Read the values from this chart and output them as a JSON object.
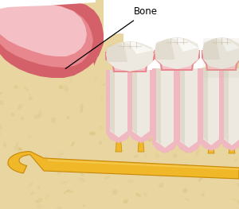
{
  "bg_color": "#ffffff",
  "bone_color": "#e8d5a0",
  "bone_spot_color": "#c8a855",
  "gum_dark": "#d4606a",
  "gum_mid": "#e8888e",
  "gum_light": "#f5c0c5",
  "tooth_cream": "#ede9e0",
  "tooth_light": "#f5f3ee",
  "tooth_white": "#ffffff",
  "tooth_shadow": "#c8c0a8",
  "tooth_dark": "#b8a888",
  "pdl_color": "#f0b8c0",
  "nerve_yellow": "#f0b828",
  "nerve_dark": "#c88808",
  "nerve_light": "#f8d060",
  "annotation_color": "#000000",
  "label_text": "Bone",
  "figsize": [
    3.0,
    2.63
  ],
  "dpi": 100
}
